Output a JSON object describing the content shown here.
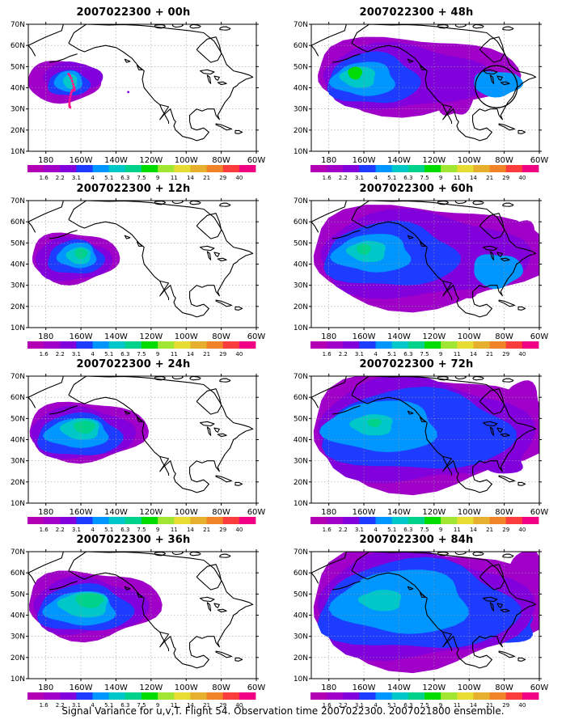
{
  "caption": "Signal Variance for u,v,T. Flight 54. Observation time 2007022300. 2007021800 ensemble.",
  "lat_labels": [
    "10N",
    "20N",
    "30N",
    "40N",
    "50N",
    "60N",
    "70N"
  ],
  "lon_labels": [
    "180",
    "160W",
    "140W",
    "120W",
    "100W",
    "80W",
    "60W"
  ],
  "colorbar": {
    "labels": [
      "1.6",
      "2.2",
      "3.1",
      "4",
      "5.1",
      "6.3",
      "7.5",
      "9",
      "11",
      "14",
      "21",
      "29",
      "40"
    ],
    "colors": [
      "#a000c8",
      "#8200dc",
      "#1e3cff",
      "#0096ff",
      "#00c8c8",
      "#00d28c",
      "#00dc00",
      "#a0e632",
      "#e6dc32",
      "#e6af2d",
      "#f08228",
      "#fa3c3c",
      "#f00082"
    ]
  },
  "panels": [
    {
      "title": "2007022300 + 00h",
      "id": "p00"
    },
    {
      "title": "2007022300 + 48h",
      "id": "p48"
    },
    {
      "title": "2007022300 + 12h",
      "id": "p12"
    },
    {
      "title": "2007022300 + 60h",
      "id": "p60"
    },
    {
      "title": "2007022300 + 24h",
      "id": "p24"
    },
    {
      "title": "2007022300 + 72h",
      "id": "p72"
    },
    {
      "title": "2007022300 + 36h",
      "id": "p36"
    },
    {
      "title": "2007022300 + 84h",
      "id": "p84"
    }
  ]
}
